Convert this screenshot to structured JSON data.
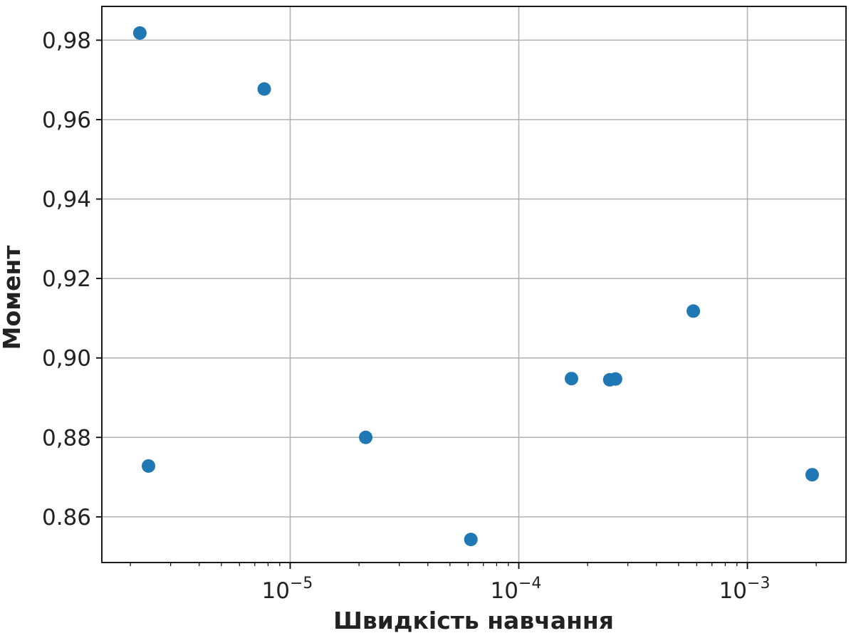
{
  "chart_data": {
    "type": "scatter",
    "xlabel": "Швидкість навчання",
    "ylabel": "Момент",
    "x_scale": "log",
    "grid": true,
    "xlim": [
      1.5e-06,
      0.0027
    ],
    "ylim": [
      0.8485,
      0.9885
    ],
    "x_ticks": [
      {
        "value": 1e-05,
        "base": "10",
        "exponent": "−5"
      },
      {
        "value": 0.0001,
        "base": "10",
        "exponent": "−4"
      },
      {
        "value": 0.001,
        "base": "10",
        "exponent": "−3"
      }
    ],
    "y_ticks": [
      {
        "value": 0.86,
        "label": "0.86"
      },
      {
        "value": 0.88,
        "label": "0,88"
      },
      {
        "value": 0.9,
        "label": "0,90"
      },
      {
        "value": 0.92,
        "label": "0,92"
      },
      {
        "value": 0.94,
        "label": "0,94"
      },
      {
        "value": 0.96,
        "label": "0,96"
      },
      {
        "value": 0.98,
        "label": "0,98"
      }
    ],
    "marker_color": "#1f77b4",
    "points": [
      {
        "x": 2.2e-06,
        "y": 0.9818
      },
      {
        "x": 2.4e-06,
        "y": 0.8728
      },
      {
        "x": 7.7e-06,
        "y": 0.9677
      },
      {
        "x": 2.14e-05,
        "y": 0.88
      },
      {
        "x": 6.17e-05,
        "y": 0.8543
      },
      {
        "x": 0.00017,
        "y": 0.8948
      },
      {
        "x": 0.00025,
        "y": 0.8945
      },
      {
        "x": 0.000265,
        "y": 0.8947
      },
      {
        "x": 0.00058,
        "y": 0.9118
      },
      {
        "x": 0.00192,
        "y": 0.8706
      }
    ]
  }
}
